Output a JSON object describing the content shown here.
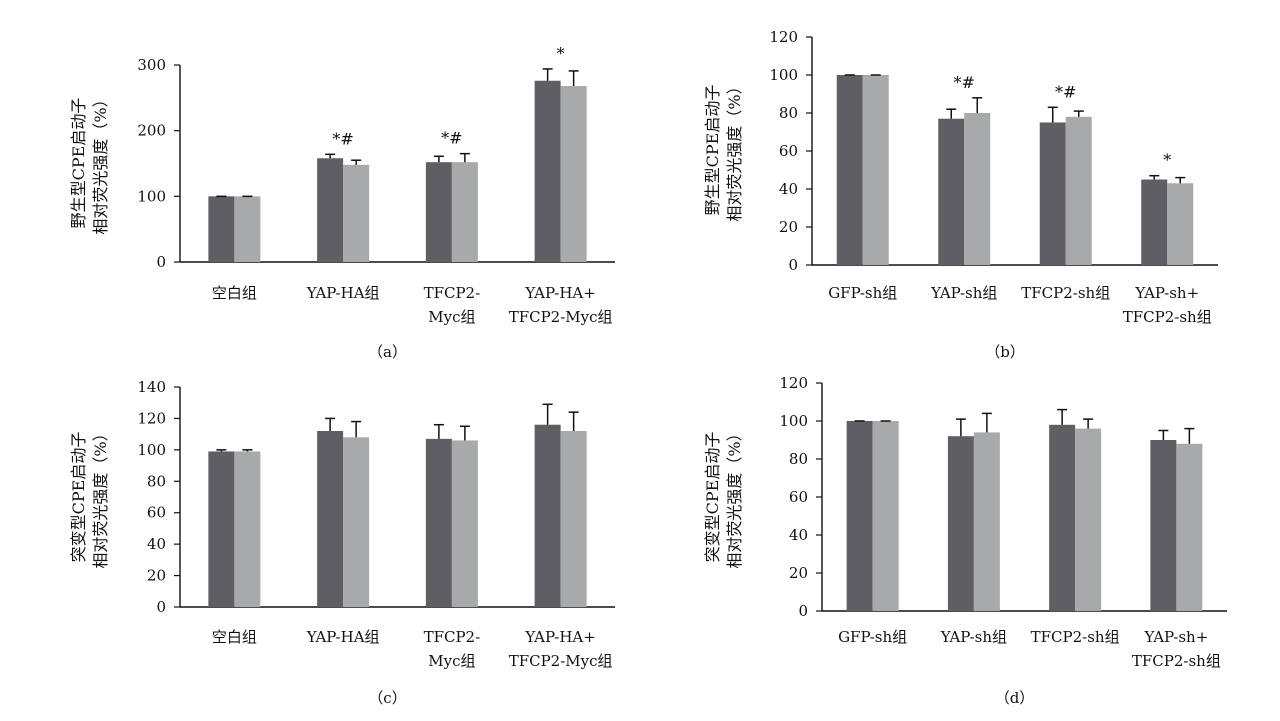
{
  "chart_data": [
    {
      "type": "bar",
      "panel_label": "（a）",
      "ylabel": [
        "野生型CPE启动子",
        "相对荧光强度（%）"
      ],
      "ylim": [
        0,
        300
      ],
      "yticks": [
        0,
        100,
        200,
        300
      ],
      "categories": [
        [
          "空白组"
        ],
        [
          "YAP-HA组"
        ],
        [
          "TFCP2-",
          "Myc组"
        ],
        [
          "YAP-HA+",
          "TFCP2-Myc组"
        ]
      ],
      "series": [
        {
          "color": "#5f5f63",
          "values": [
            100,
            158,
            152,
            276
          ],
          "errors": [
            0,
            6,
            9,
            18
          ]
        },
        {
          "color": "#a8a9ab",
          "values": [
            100,
            148,
            152,
            268
          ],
          "errors": [
            0,
            7,
            13,
            23
          ]
        }
      ],
      "annotations": [
        "",
        "*#",
        "*#",
        "*"
      ]
    },
    {
      "type": "bar",
      "panel_label": "（b）",
      "ylabel": [
        "野生型CPE启动子",
        "相对荧光强度（%）"
      ],
      "ylim": [
        0,
        120
      ],
      "yticks": [
        0,
        20,
        40,
        60,
        80,
        100,
        120
      ],
      "categories": [
        [
          "GFP-sh组"
        ],
        [
          "YAP-sh组"
        ],
        [
          "TFCP2-sh组"
        ],
        [
          "YAP-sh+",
          "TFCP2-sh组"
        ]
      ],
      "series": [
        {
          "color": "#5f5f63",
          "values": [
            100,
            77,
            75,
            45
          ],
          "errors": [
            0,
            5,
            8,
            2
          ]
        },
        {
          "color": "#a8a9ab",
          "values": [
            100,
            80,
            78,
            43
          ],
          "errors": [
            0,
            8,
            3,
            3
          ]
        }
      ],
      "annotations": [
        "",
        "*#",
        "*#",
        "*"
      ]
    },
    {
      "type": "bar",
      "panel_label": "（c）",
      "ylabel": [
        "突变型CPE启动子",
        "相对荧光强度（%）"
      ],
      "ylim": [
        0,
        140
      ],
      "yticks": [
        0,
        20,
        40,
        60,
        80,
        100,
        120,
        140
      ],
      "categories": [
        [
          "空白组"
        ],
        [
          "YAP-HA组"
        ],
        [
          "TFCP2-",
          "Myc组"
        ],
        [
          "YAP-HA+",
          "TFCP2-Myc组"
        ]
      ],
      "series": [
        {
          "color": "#5f5f63",
          "values": [
            99,
            112,
            107,
            116
          ],
          "errors": [
            1,
            8,
            9,
            13
          ]
        },
        {
          "color": "#a8a9ab",
          "values": [
            99,
            108,
            106,
            112
          ],
          "errors": [
            1,
            10,
            9,
            12
          ]
        }
      ],
      "annotations": [
        "",
        "",
        "",
        ""
      ]
    },
    {
      "type": "bar",
      "panel_label": "（d）",
      "ylabel": [
        "突变型CPE启动子",
        "相对荧光强度（%）"
      ],
      "ylim": [
        0,
        120
      ],
      "yticks": [
        0,
        20,
        40,
        60,
        80,
        100,
        120
      ],
      "categories": [
        [
          "GFP-sh组"
        ],
        [
          "YAP-sh组"
        ],
        [
          "TFCP2-sh组"
        ],
        [
          "YAP-sh+",
          "TFCP2-sh组"
        ]
      ],
      "series": [
        {
          "color": "#5f5f63",
          "values": [
            100,
            92,
            98,
            90
          ],
          "errors": [
            0,
            9,
            8,
            5
          ]
        },
        {
          "color": "#a8a9ab",
          "values": [
            100,
            94,
            96,
            88
          ],
          "errors": [
            0,
            10,
            5,
            8
          ]
        }
      ],
      "annotations": [
        "",
        "",
        "",
        ""
      ]
    }
  ]
}
